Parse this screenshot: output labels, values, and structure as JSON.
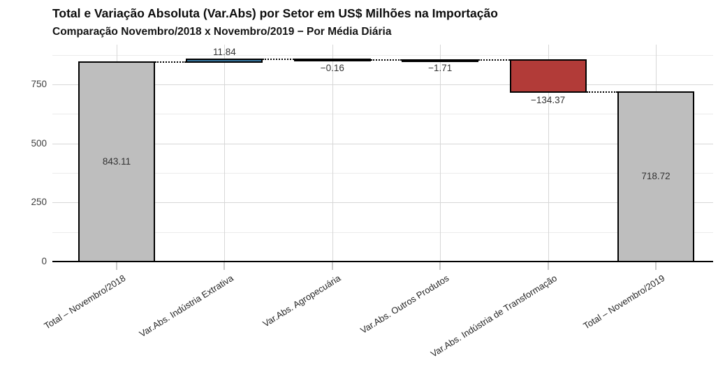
{
  "chart_data": {
    "type": "waterfall",
    "title": "Total e Variação Absoluta (Var.Abs) por Setor em US$ Milhões na Importação",
    "subtitle": "Comparação Novembro/2018 x Novembro/2019 − Por Média Diária",
    "unit": "US$ Milhões",
    "categories": [
      "Total – Novembro/2018",
      "Var.Abs. Indústria Extrativa",
      "Var.Abs. Agropecuária",
      "Var.Abs. Outros Produtos",
      "Var.Abs. Indústria de Transformação",
      "Total – Novembro/2019"
    ],
    "bars": [
      {
        "category": "Total – Novembro/2018",
        "kind": "total",
        "value": 843.11,
        "label": "843.11"
      },
      {
        "category": "Var.Abs. Indústria Extrativa",
        "kind": "increase",
        "value": 11.84,
        "label": "11.84"
      },
      {
        "category": "Var.Abs. Agropecuária",
        "kind": "decrease",
        "value": -0.16,
        "label": "−0.16"
      },
      {
        "category": "Var.Abs. Outros Produtos",
        "kind": "decrease",
        "value": -1.71,
        "label": "−1.71"
      },
      {
        "category": "Var.Abs. Indústria de Transformação",
        "kind": "decrease",
        "value": -134.37,
        "label": "−134.37"
      },
      {
        "category": "Total – Novembro/2019",
        "kind": "total",
        "value": 718.72,
        "label": "718.72"
      }
    ],
    "y_axis": {
      "tick_labels": [
        "0",
        "250",
        "500",
        "750"
      ],
      "tick_values": [
        0,
        250,
        500,
        750
      ],
      "minor_values": [
        125,
        375,
        625,
        875
      ],
      "range": [
        0,
        900
      ]
    },
    "colors": {
      "total": "#BEBEBE",
      "increase": "#3878A0",
      "decrease": "#B23B38",
      "bar_border": "#000000",
      "grid_major": "#D7D7D7",
      "grid_minor": "#EBEBEB",
      "axis_line": "#000000",
      "tick_mark": "#C9C9C9",
      "value_text": "#333333",
      "axis_text": "#3d3d3d"
    },
    "grid": true,
    "legend": false
  }
}
